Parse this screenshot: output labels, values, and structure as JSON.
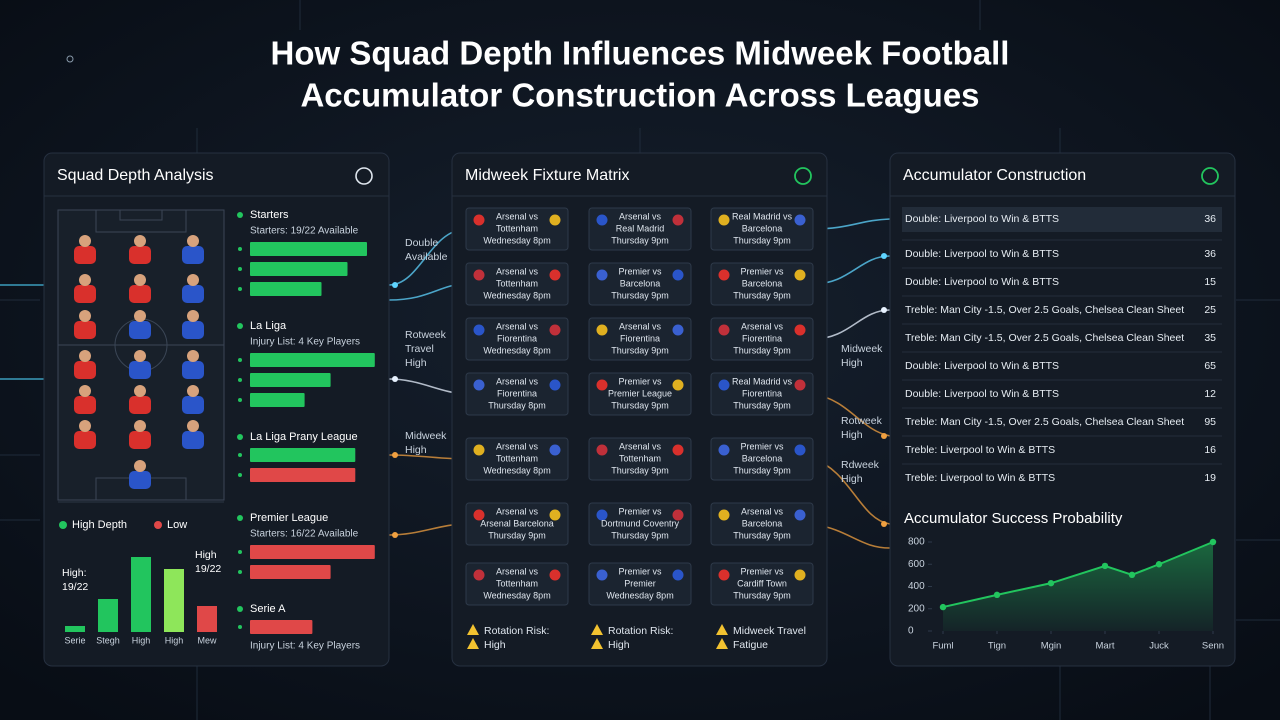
{
  "title": [
    "How Squad Depth Influences Midweek Football",
    "Accumulator Construction Across Leagues"
  ],
  "squad": {
    "heading": "Squad Depth Analysis",
    "groups": [
      {
        "name": "Starters",
        "detail": "Starters: 19/22 Available",
        "bars": [
          {
            "value": 90,
            "color": "#22c55e"
          },
          {
            "value": 75,
            "color": "#22c55e"
          },
          {
            "value": 55,
            "color": "#22c55e"
          }
        ]
      },
      {
        "name": "La Liga",
        "detail": "Injury List: 4 Key Players",
        "bars": [
          {
            "value": 96,
            "color": "#22c55e"
          },
          {
            "value": 62,
            "color": "#22c55e"
          },
          {
            "value": 42,
            "color": "#22c55e"
          }
        ]
      },
      {
        "name": "La Liga Prany League",
        "bars": [
          {
            "value": 81,
            "color": "#22c55e"
          },
          {
            "value": 81,
            "color": "#e04848"
          }
        ]
      },
      {
        "name": "Premier League",
        "detail": "Starters: 16/22 Available",
        "bars": [
          {
            "value": 96,
            "color": "#e04848"
          },
          {
            "value": 62,
            "color": "#e04848"
          }
        ]
      },
      {
        "name": "Serie A",
        "detail": "Injury List: 4 Key Players",
        "bars": [
          {
            "value": 48,
            "color": "#e04848"
          }
        ]
      }
    ]
  },
  "fixtures": {
    "heading": "Midweek Fixture Matrix",
    "cards": [
      {
        "lines": [
          "Arsenal vs",
          "Tottenham",
          "Wednesday 8pm"
        ]
      },
      {
        "lines": [
          "Arsenal vs",
          "Real Madrid",
          "Thursday 9pm"
        ]
      },
      {
        "lines": [
          "Real Madrid vs",
          "Barcelona",
          "Thursday 9pm"
        ]
      },
      {
        "lines": [
          "Arsenal vs",
          "Tottenham",
          "Wednesday 8pm"
        ]
      },
      {
        "lines": [
          "Premier vs",
          "Barcelona",
          "Thursday 9pm"
        ]
      },
      {
        "lines": [
          "Premier vs",
          "Barcelona",
          "Thursday 9pm"
        ]
      },
      {
        "lines": [
          "Arsenal vs",
          "Fiorentina",
          "Wednesday 8pm"
        ]
      },
      {
        "lines": [
          "Arsenal vs",
          "Fiorentina",
          "Thursday 9pm"
        ]
      },
      {
        "lines": [
          "Arsenal vs",
          "Fiorentina",
          "Thursday 9pm"
        ]
      },
      {
        "lines": [
          "Arsenal vs",
          "Fiorentina",
          "Thursday 8pm"
        ]
      },
      {
        "lines": [
          "Premier vs",
          "Premier League",
          "Thursday 9pm"
        ]
      },
      {
        "lines": [
          "Real Madrid vs",
          "Fiorentina",
          "Thursday 9pm"
        ]
      },
      {
        "lines": [
          "Arsenal vs",
          "Tottenham",
          "Wednesday 8pm"
        ]
      },
      {
        "lines": [
          "Arsenal vs",
          "Tottenham",
          "Thursday 9pm"
        ]
      },
      {
        "lines": [
          "Premier vs",
          "Barcelona",
          "Thursday 9pm"
        ]
      },
      {
        "lines": [
          "Arsenal vs",
          "Arsenal Barcelona",
          "Thursday 9pm"
        ]
      },
      {
        "lines": [
          "Premier vs",
          "Dortmund Coventry",
          "Thursday 9pm"
        ]
      },
      {
        "lines": [
          "Arsenal vs",
          "Barcelona",
          "Thursday 9pm"
        ]
      },
      {
        "lines": [
          "Arsenal vs",
          "Tottenham",
          "Wednesday 8pm"
        ]
      },
      {
        "lines": [
          "Premier vs",
          "Premier",
          "Wednesday 8pm"
        ]
      },
      {
        "lines": [
          "Premier vs",
          "Cardiff Town",
          "Thursday 9pm"
        ]
      }
    ],
    "warnings": [
      {
        "lines": [
          "Rotation Risk:",
          "High"
        ]
      },
      {
        "lines": [
          "Rotation Risk:",
          "High"
        ]
      },
      {
        "lines": [
          "Midweek Travel",
          "Fatigue"
        ]
      }
    ]
  },
  "connectors": {
    "left": [
      {
        "lines": [
          "Double",
          "Available"
        ]
      },
      {
        "lines": [
          "Rotweek",
          "Travel",
          "High"
        ]
      },
      {
        "lines": [
          "Midweek",
          "High"
        ]
      }
    ],
    "right": [
      {
        "lines": [
          "Midweek",
          "High"
        ]
      },
      {
        "lines": [
          "Rotweek",
          "High"
        ]
      },
      {
        "lines": [
          "Rdweek",
          "High"
        ]
      }
    ]
  },
  "accumulator": {
    "heading": "Accumulator Construction",
    "rows": [
      {
        "text": "Double: Liverpool to Win & BTTS",
        "value": 36
      },
      {
        "text": "Double: Liverpool to Win & BTTS",
        "value": 36
      },
      {
        "text": "Double: Liverpool to Win & BTTS",
        "value": 15
      },
      {
        "text": "Treble: Man City -1.5, Over 2.5 Goals, Chelsea Clean Sheet",
        "value": 25
      },
      {
        "text": "Treble: Man City -1.5, Over 2.5 Goals, Chelsea Clean Sheet",
        "value": 35
      },
      {
        "text": "Double: Liverpool to Win & BTTS",
        "value": 65
      },
      {
        "text": "Double: Liverpool to Win & BTTS",
        "value": 12
      },
      {
        "text": "Treble: Man City -1.5, Over 2.5 Goals, Chelsea Clean Sheet",
        "value": 95
      },
      {
        "text": "Treble: Liverpool to Win & BTTS",
        "value": 16
      },
      {
        "text": "Treble: Liverpool to Win & BTTS",
        "value": 19
      }
    ]
  },
  "chart_data": [
    {
      "type": "bar",
      "legend": [
        {
          "name": "High Depth",
          "color": "#22c55e"
        },
        {
          "name": "Low",
          "color": "#e04848"
        }
      ],
      "categories": [
        "Serie",
        "Stegh",
        "High",
        "High",
        "Mew"
      ],
      "values": [
        6,
        33,
        75,
        63,
        26
      ],
      "colors": [
        "#22c55e",
        "#22c55e",
        "#22c55e",
        "#8ee65a",
        "#e04848"
      ],
      "ylim": [
        0,
        80
      ],
      "annotations": [
        {
          "lines": [
            "High:",
            "19/22"
          ]
        },
        {
          "lines": [
            "High",
            "19/22"
          ]
        }
      ]
    },
    {
      "type": "line",
      "title": "Accumulator Success Probability",
      "x": [
        0,
        1,
        2,
        3,
        3.5,
        4,
        5
      ],
      "values": [
        215,
        325,
        430,
        585,
        505,
        600,
        800
      ],
      "color": "#22c55e",
      "xlim": [
        0,
        5
      ],
      "xticks": [
        {
          "value": 0,
          "label": "Fuml"
        },
        {
          "value": 1,
          "label": "Tign"
        },
        {
          "value": 2,
          "label": "Mgin"
        },
        {
          "value": 3,
          "label": "Mart"
        },
        {
          "value": 4,
          "label": "Juck"
        },
        {
          "value": 5,
          "label": "Senn"
        }
      ],
      "ylim": [
        0,
        800
      ],
      "yticks": [
        0,
        200,
        400,
        600,
        800
      ]
    }
  ]
}
